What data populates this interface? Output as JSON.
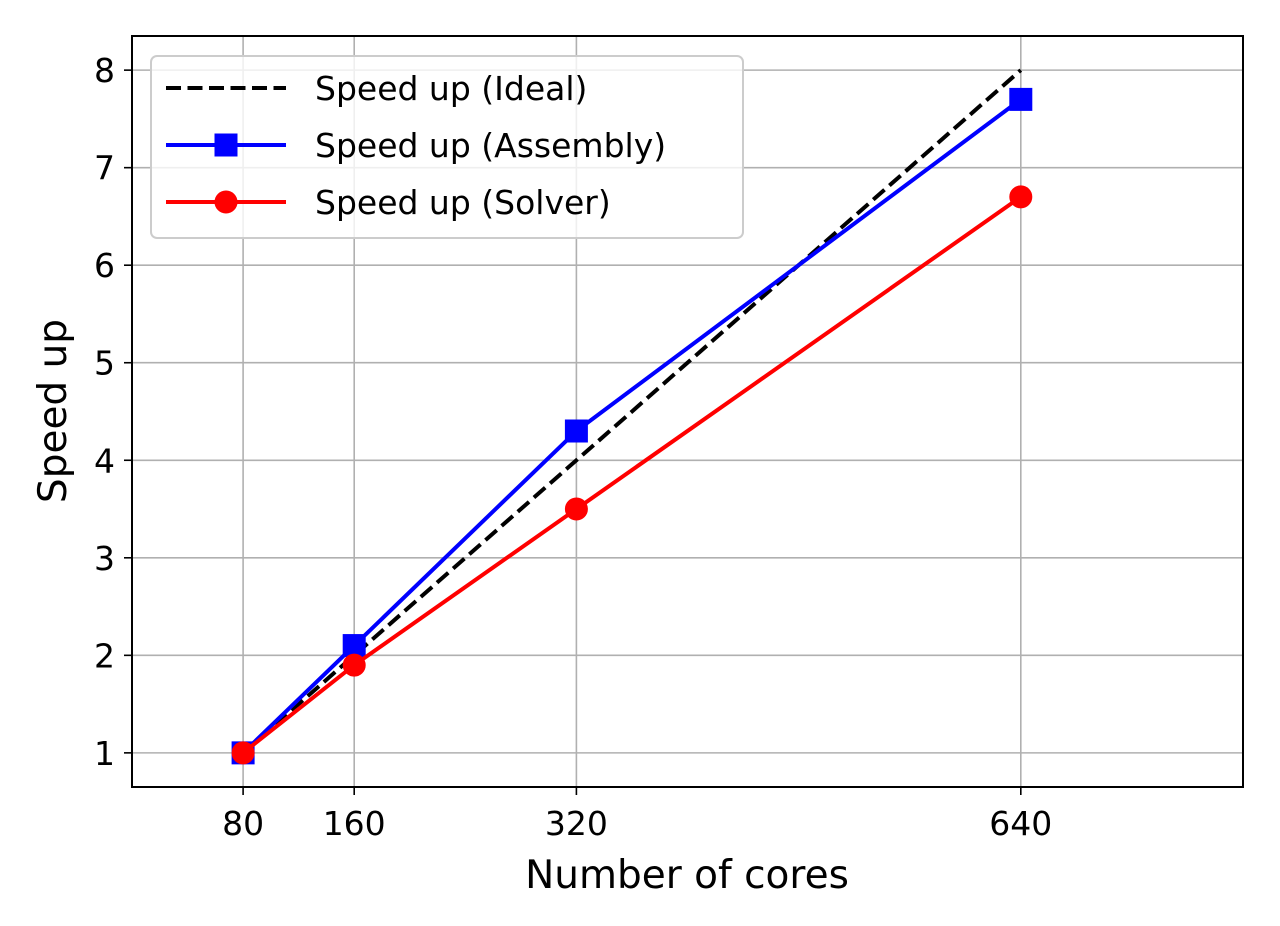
{
  "chart_data": {
    "type": "line",
    "xlabel": "Number of cores",
    "ylabel": "Speed up",
    "x": [
      80,
      160,
      320,
      640
    ],
    "xticks": [
      "80",
      "160",
      "320",
      "640"
    ],
    "yticks": [
      "1",
      "2",
      "3",
      "4",
      "5",
      "6",
      "7",
      "8"
    ],
    "xlim": [
      0,
      800
    ],
    "ylim": [
      0.65,
      8.35
    ],
    "grid": true,
    "legend_position": "top-left",
    "series": [
      {
        "name": "Speed up (Ideal)",
        "values": [
          1,
          2,
          4,
          8
        ],
        "color": "#000000",
        "dashed": true,
        "marker": "none"
      },
      {
        "name": "Speed up (Assembly)",
        "values": [
          1,
          2.1,
          4.3,
          7.7
        ],
        "color": "#0000ff",
        "dashed": false,
        "marker": "square"
      },
      {
        "name": "Speed up (Solver)",
        "values": [
          1,
          1.9,
          3.5,
          6.7
        ],
        "color": "#ff0000",
        "dashed": false,
        "marker": "circle"
      }
    ]
  }
}
